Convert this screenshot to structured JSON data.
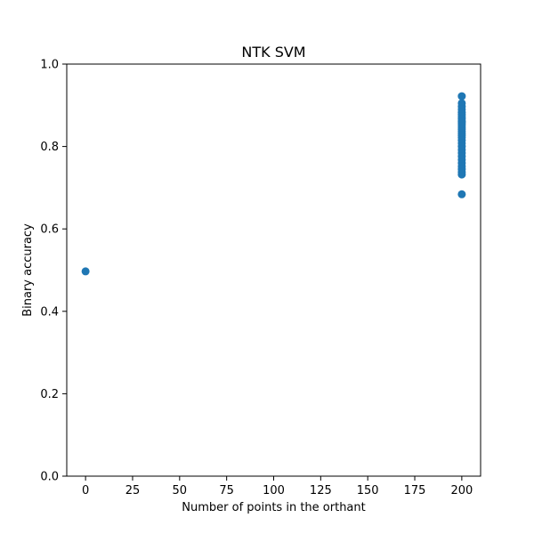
{
  "chart_data": {
    "type": "scatter",
    "title": "NTK SVM",
    "xlabel": "Number of points in the orthant",
    "ylabel": "Binary accuracy",
    "xlim": [
      -10,
      210
    ],
    "ylim": [
      0.0,
      1.0
    ],
    "x_ticks": [
      "0",
      "25",
      "50",
      "75",
      "100",
      "125",
      "150",
      "175",
      "200"
    ],
    "y_ticks": [
      "0.0",
      "0.2",
      "0.4",
      "0.6",
      "0.8",
      "1.0"
    ],
    "grid": false,
    "marker_color": "#1f77b4",
    "series": [
      {
        "x": [
          0,
          200,
          200,
          200,
          200,
          200,
          200,
          200,
          200,
          200,
          200,
          200,
          200,
          200,
          200,
          200,
          200,
          200,
          200,
          200,
          200,
          200,
          200,
          200,
          200,
          200,
          200,
          200,
          200,
          200,
          200,
          200
        ],
        "y": [
          0.497,
          0.922,
          0.905,
          0.897,
          0.89,
          0.883,
          0.877,
          0.872,
          0.867,
          0.862,
          0.857,
          0.852,
          0.847,
          0.842,
          0.837,
          0.832,
          0.827,
          0.822,
          0.815,
          0.808,
          0.8,
          0.792,
          0.784,
          0.776,
          0.768,
          0.76,
          0.752,
          0.745,
          0.738,
          0.732,
          0.684,
          0.86
        ]
      }
    ]
  }
}
